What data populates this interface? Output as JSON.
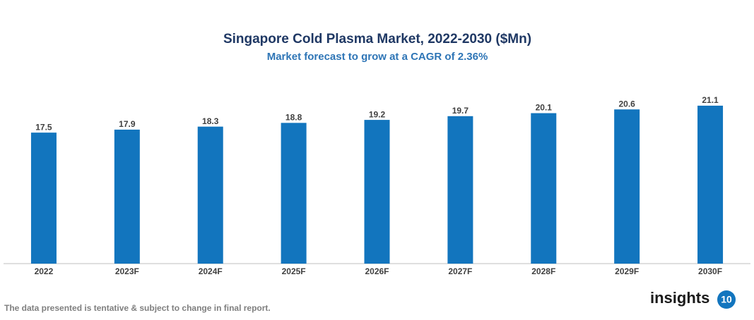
{
  "chart_data": {
    "type": "bar",
    "title": "Singapore Cold Plasma Market, 2022-2030 ($Mn)",
    "subtitle": "Market forecast to grow at a CAGR of 2.36%",
    "categories": [
      "2022",
      "2023F",
      "2024F",
      "2025F",
      "2026F",
      "2027F",
      "2028F",
      "2029F",
      "2030F"
    ],
    "values": [
      17.5,
      17.9,
      18.3,
      18.8,
      19.2,
      19.7,
      20.1,
      20.6,
      21.1
    ],
    "color": "#1275be"
  },
  "footer": {
    "note": "The data presented is tentative & subject to change in final report.",
    "logo_text": "insights",
    "logo_number": "10"
  }
}
